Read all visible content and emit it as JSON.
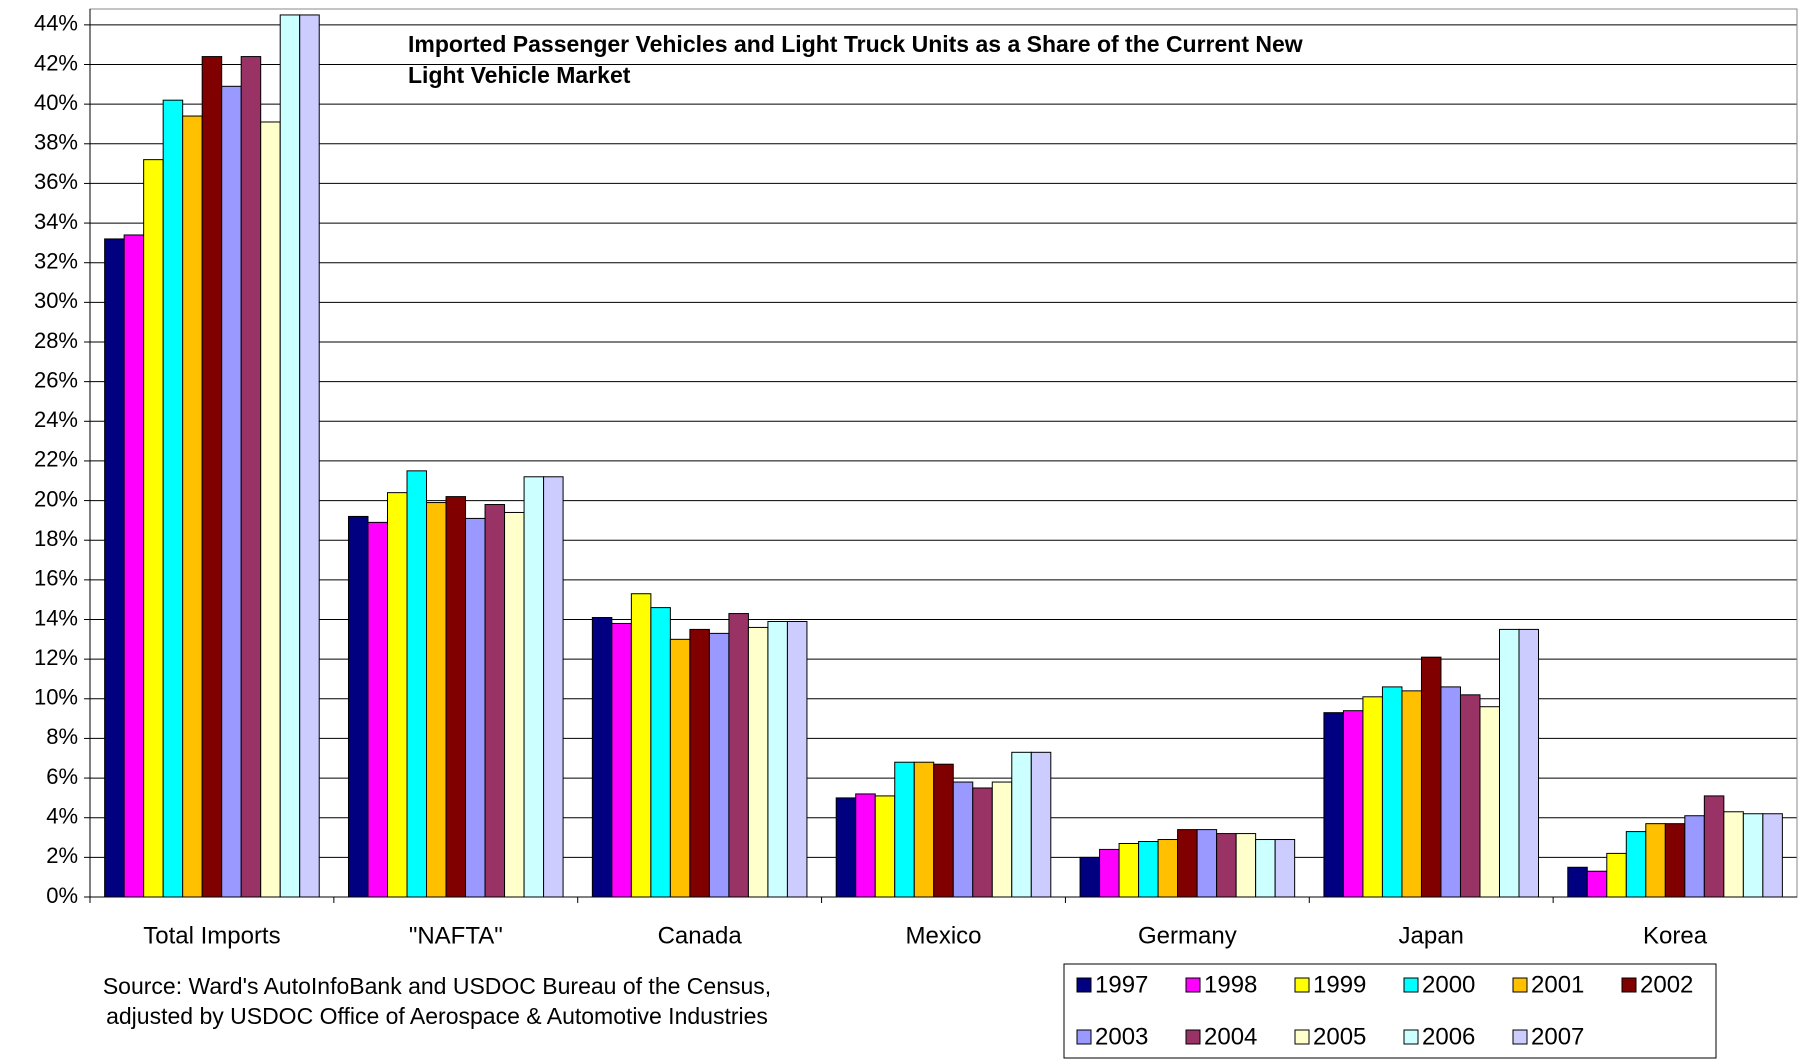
{
  "chart_data": {
    "type": "bar",
    "title": [
      "Imported Passenger Vehicles and Light Truck Units as a Share of the Current New",
      "Light Vehicle Market"
    ],
    "source": [
      "Source: Ward's AutoInfoBank and USDOC Bureau of the Census,",
      "adjusted by USDOC Office of Aerospace & Automotive Industries"
    ],
    "categories": [
      "Total Imports",
      "\"NAFTA\"",
      "Canada",
      "Mexico",
      "Germany",
      "Japan",
      "Korea"
    ],
    "ylim": [
      0,
      44.8
    ],
    "yticks": [
      {
        "value": 0,
        "label": "0%"
      },
      {
        "value": 2,
        "label": "2%"
      },
      {
        "value": 4,
        "label": "4%"
      },
      {
        "value": 6,
        "label": "6%"
      },
      {
        "value": 8,
        "label": "8%"
      },
      {
        "value": 10,
        "label": "10%"
      },
      {
        "value": 12,
        "label": "12%"
      },
      {
        "value": 14,
        "label": "14%"
      },
      {
        "value": 16,
        "label": "16%"
      },
      {
        "value": 18,
        "label": "18%"
      },
      {
        "value": 20,
        "label": "20%"
      },
      {
        "value": 22,
        "label": "22%"
      },
      {
        "value": 24,
        "label": "24%"
      },
      {
        "value": 26,
        "label": "26%"
      },
      {
        "value": 28,
        "label": "28%"
      },
      {
        "value": 30,
        "label": "30%"
      },
      {
        "value": 32,
        "label": "32%"
      },
      {
        "value": 34,
        "label": "34%"
      },
      {
        "value": 36,
        "label": "36%"
      },
      {
        "value": 38,
        "label": "38%"
      },
      {
        "value": 40,
        "label": "40%"
      },
      {
        "value": 42,
        "label": "42%"
      },
      {
        "value": 44,
        "label": "44%"
      }
    ],
    "grid": true,
    "series": [
      {
        "name": "1997",
        "color": "#000080",
        "values": [
          33.2,
          19.2,
          14.1,
          5.0,
          2.0,
          9.3,
          1.5
        ]
      },
      {
        "name": "1998",
        "color": "#ff00ff",
        "values": [
          33.4,
          18.9,
          13.8,
          5.2,
          2.4,
          9.4,
          1.3
        ]
      },
      {
        "name": "1999",
        "color": "#ffff00",
        "values": [
          37.2,
          20.4,
          15.3,
          5.1,
          2.7,
          10.1,
          2.2
        ]
      },
      {
        "name": "2000",
        "color": "#00ffff",
        "values": [
          40.2,
          21.5,
          14.6,
          6.8,
          2.8,
          10.6,
          3.3
        ]
      },
      {
        "name": "2001",
        "color": "#ffc000",
        "values": [
          39.4,
          19.9,
          13.0,
          6.8,
          2.9,
          10.4,
          3.7
        ]
      },
      {
        "name": "2002",
        "color": "#800000",
        "values": [
          42.4,
          20.2,
          13.5,
          6.7,
          3.4,
          12.1,
          3.7
        ]
      },
      {
        "name": "2003",
        "color": "#9999ff",
        "values": [
          40.9,
          19.1,
          13.3,
          5.8,
          3.4,
          10.6,
          4.1
        ]
      },
      {
        "name": "2004",
        "color": "#993366",
        "values": [
          42.4,
          19.8,
          14.3,
          5.5,
          3.2,
          10.2,
          5.1
        ]
      },
      {
        "name": "2005",
        "color": "#ffffcc",
        "values": [
          39.1,
          19.4,
          13.6,
          5.8,
          3.2,
          9.6,
          4.3
        ]
      },
      {
        "name": "2006",
        "color": "#ccffff",
        "values": [
          44.5,
          21.2,
          13.9,
          7.3,
          2.9,
          13.5,
          4.2
        ]
      },
      {
        "name": "2007",
        "color": "#ccccff",
        "values": [
          44.5,
          21.2,
          13.9,
          7.3,
          2.9,
          13.5,
          4.2
        ]
      }
    ]
  }
}
